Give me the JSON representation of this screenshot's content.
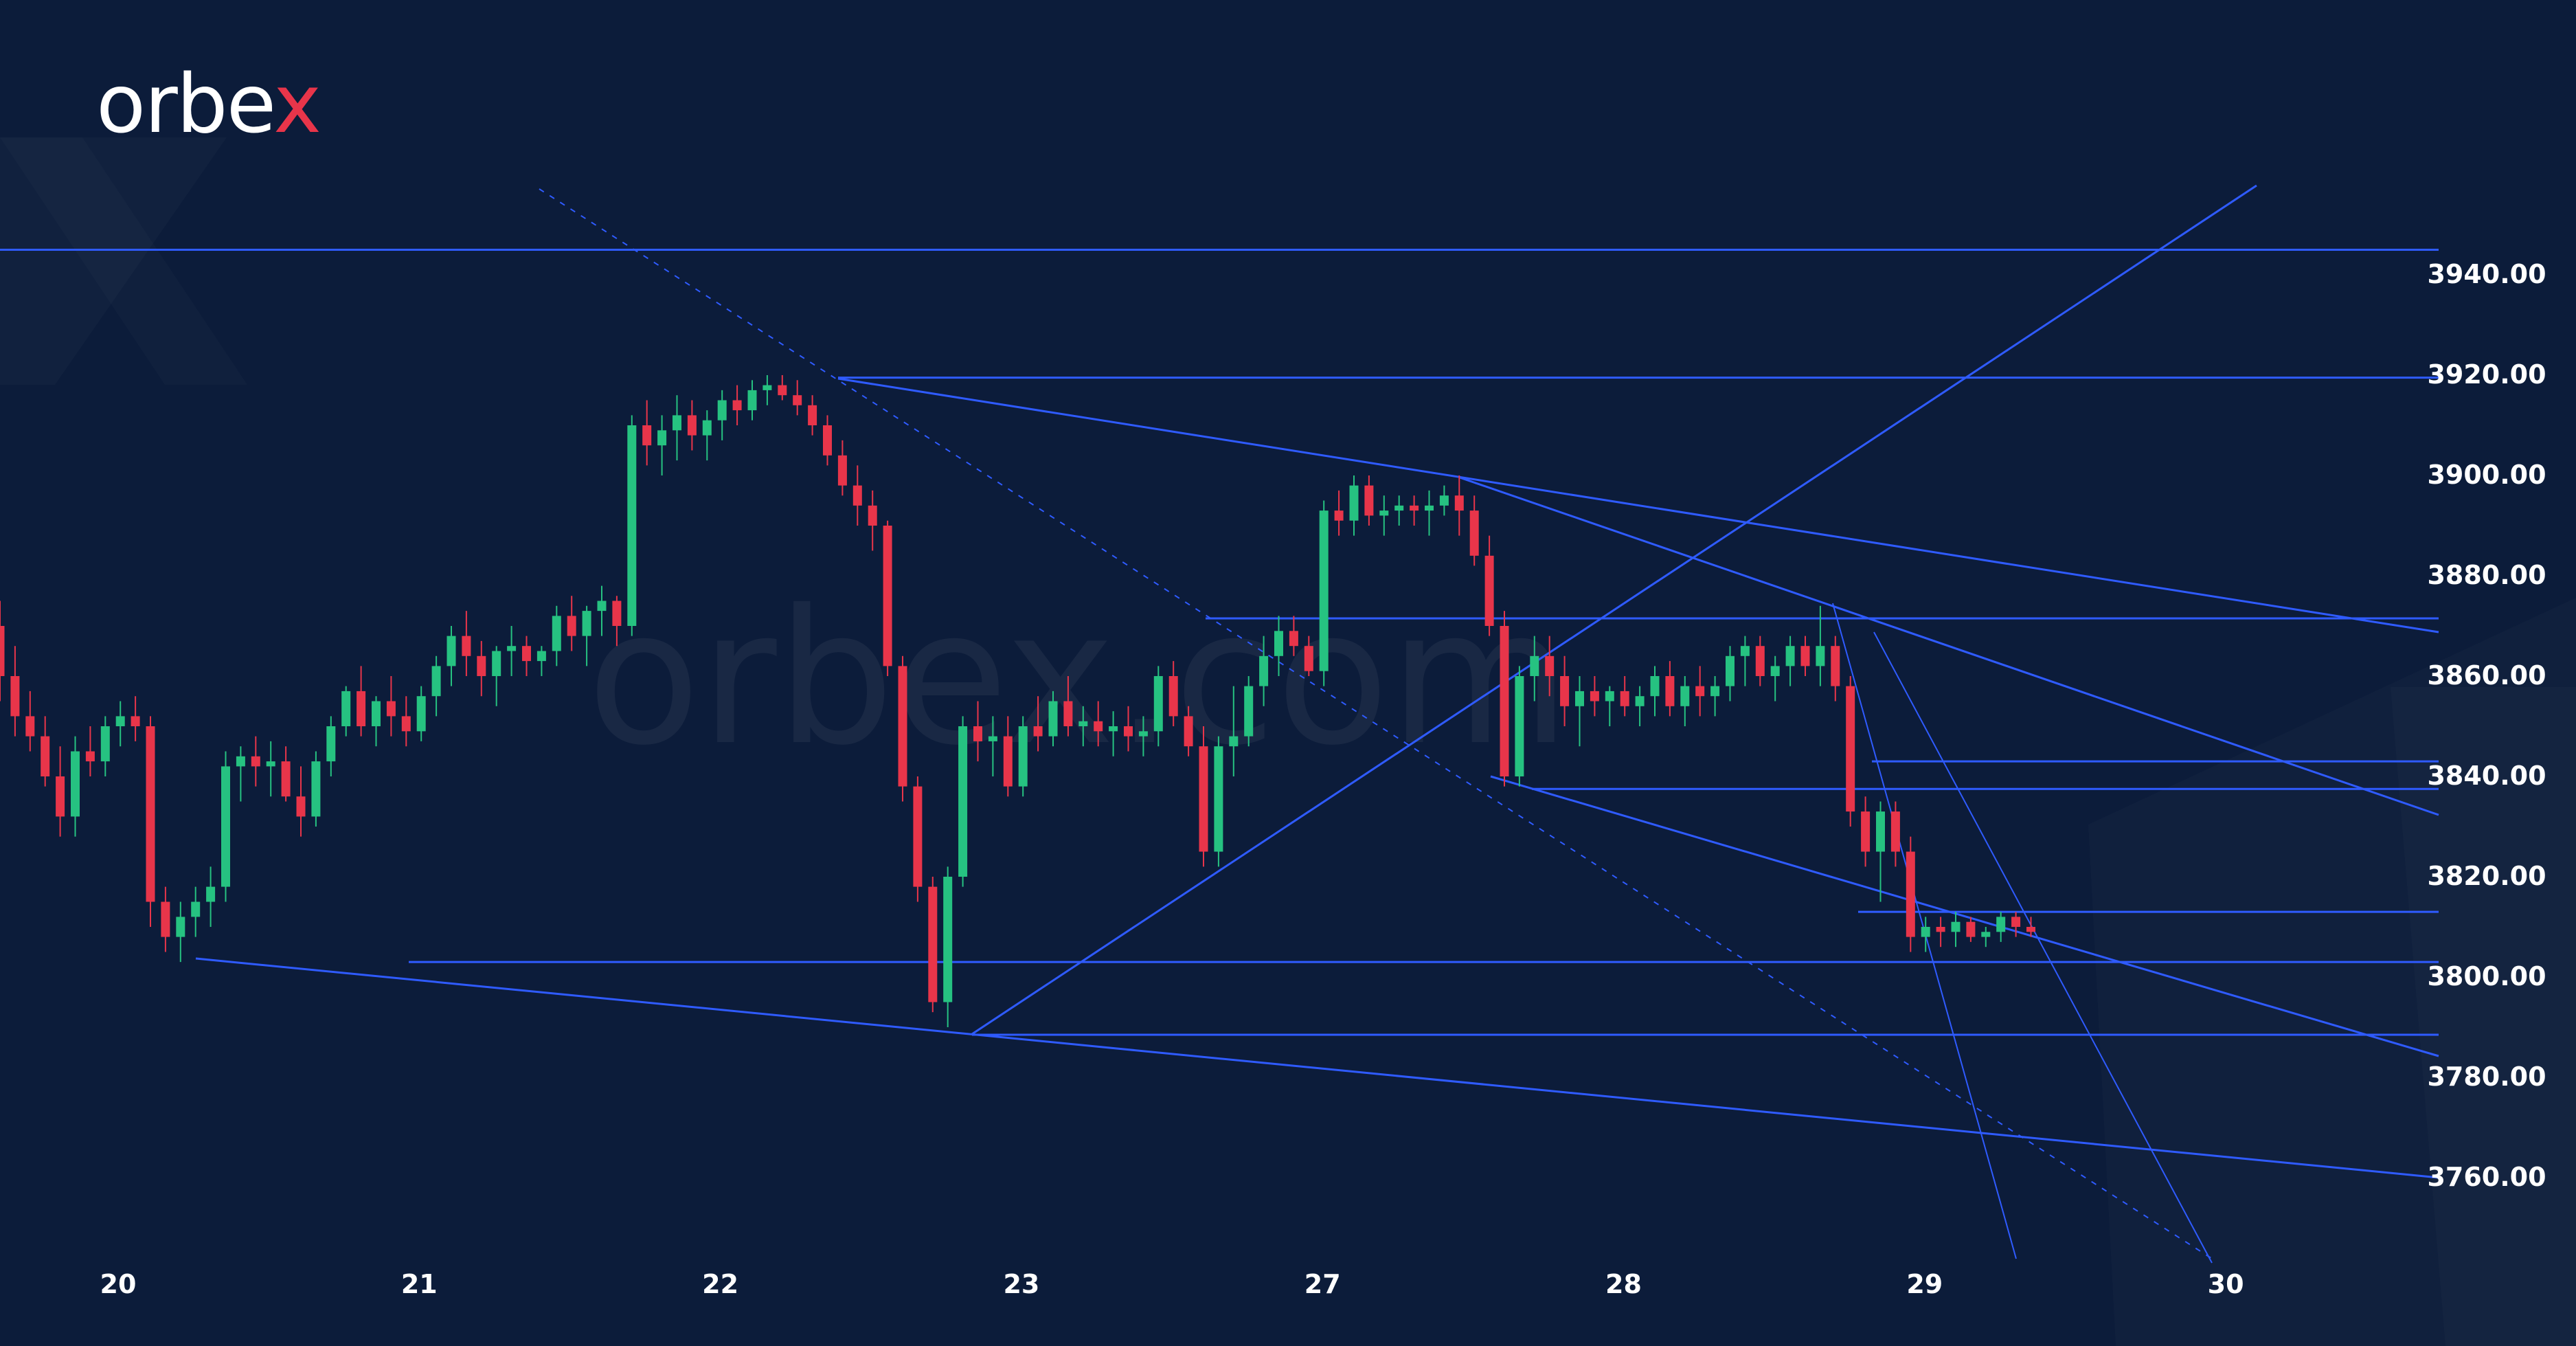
{
  "brand": {
    "logo_main": "orbe",
    "logo_x": "x",
    "watermark": "orbex.com"
  },
  "colors": {
    "background": "#0c1c3a",
    "up": "#26c281",
    "down": "#e8354a",
    "line": "#2f5bff",
    "text": "#ffffff"
  },
  "chart_data": {
    "type": "candlestick",
    "xlabels": [
      "20",
      "21",
      "22",
      "23",
      "27",
      "28",
      "29",
      "30"
    ],
    "yticks": [
      "3940.00",
      "3920.00",
      "3900.00",
      "3880.00",
      "3860.00",
      "3840.00",
      "3820.00",
      "3800.00",
      "3780.00",
      "3760.00"
    ],
    "ylim": [
      3745,
      3955
    ],
    "horizontal_levels": [
      3945,
      3919.5,
      3871.5,
      3843,
      3837.5,
      3813,
      3803,
      3788.5
    ],
    "candles": [
      [
        3870,
        3875,
        3855,
        3860
      ],
      [
        3860,
        3866,
        3848,
        3852
      ],
      [
        3852,
        3857,
        3845,
        3848
      ],
      [
        3848,
        3852,
        3838,
        3840
      ],
      [
        3840,
        3846,
        3828,
        3832
      ],
      [
        3832,
        3848,
        3828,
        3845
      ],
      [
        3845,
        3850,
        3840,
        3843
      ],
      [
        3843,
        3852,
        3840,
        3850
      ],
      [
        3850,
        3855,
        3846,
        3852
      ],
      [
        3852,
        3856,
        3847,
        3850
      ],
      [
        3850,
        3852,
        3810,
        3815
      ],
      [
        3815,
        3818,
        3805,
        3808
      ],
      [
        3808,
        3815,
        3803,
        3812
      ],
      [
        3812,
        3818,
        3808,
        3815
      ],
      [
        3815,
        3822,
        3810,
        3818
      ],
      [
        3818,
        3845,
        3815,
        3842
      ],
      [
        3842,
        3846,
        3835,
        3844
      ],
      [
        3844,
        3848,
        3838,
        3842
      ],
      [
        3842,
        3847,
        3836,
        3843
      ],
      [
        3843,
        3846,
        3835,
        3836
      ],
      [
        3836,
        3842,
        3828,
        3832
      ],
      [
        3832,
        3845,
        3830,
        3843
      ],
      [
        3843,
        3852,
        3840,
        3850
      ],
      [
        3850,
        3858,
        3848,
        3857
      ],
      [
        3857,
        3862,
        3848,
        3850
      ],
      [
        3850,
        3856,
        3846,
        3855
      ],
      [
        3855,
        3860,
        3848,
        3852
      ],
      [
        3852,
        3856,
        3846,
        3849
      ],
      [
        3849,
        3858,
        3847,
        3856
      ],
      [
        3856,
        3864,
        3852,
        3862
      ],
      [
        3862,
        3870,
        3858,
        3868
      ],
      [
        3868,
        3873,
        3860,
        3864
      ],
      [
        3864,
        3867,
        3856,
        3860
      ],
      [
        3860,
        3866,
        3854,
        3865
      ],
      [
        3865,
        3870,
        3860,
        3866
      ],
      [
        3866,
        3868,
        3860,
        3863
      ],
      [
        3863,
        3866,
        3860,
        3865
      ],
      [
        3865,
        3874,
        3862,
        3872
      ],
      [
        3872,
        3876,
        3865,
        3868
      ],
      [
        3868,
        3874,
        3862,
        3873
      ],
      [
        3873,
        3878,
        3868,
        3875
      ],
      [
        3875,
        3876,
        3866,
        3870
      ],
      [
        3870,
        3912,
        3868,
        3910
      ],
      [
        3910,
        3915,
        3902,
        3906
      ],
      [
        3906,
        3912,
        3900,
        3909
      ],
      [
        3909,
        3916,
        3903,
        3912
      ],
      [
        3912,
        3915,
        3905,
        3908
      ],
      [
        3908,
        3913,
        3903,
        3911
      ],
      [
        3911,
        3917,
        3907,
        3915
      ],
      [
        3915,
        3918,
        3910,
        3913
      ],
      [
        3913,
        3919,
        3911,
        3917
      ],
      [
        3917,
        3920,
        3914,
        3918
      ],
      [
        3918,
        3920,
        3915,
        3916
      ],
      [
        3916,
        3919,
        3912,
        3914
      ],
      [
        3914,
        3916,
        3908,
        3910
      ],
      [
        3910,
        3912,
        3902,
        3904
      ],
      [
        3904,
        3907,
        3896,
        3898
      ],
      [
        3898,
        3902,
        3890,
        3894
      ],
      [
        3894,
        3897,
        3885,
        3890
      ],
      [
        3890,
        3891,
        3860,
        3862
      ],
      [
        3862,
        3864,
        3835,
        3838
      ],
      [
        3838,
        3840,
        3815,
        3818
      ],
      [
        3818,
        3820,
        3793,
        3795
      ],
      [
        3795,
        3822,
        3790,
        3820
      ],
      [
        3820,
        3852,
        3818,
        3850
      ],
      [
        3850,
        3855,
        3843,
        3847
      ],
      [
        3847,
        3852,
        3840,
        3848
      ],
      [
        3848,
        3852,
        3836,
        3838
      ],
      [
        3838,
        3852,
        3836,
        3850
      ],
      [
        3850,
        3856,
        3845,
        3848
      ],
      [
        3848,
        3857,
        3846,
        3855
      ],
      [
        3855,
        3860,
        3848,
        3850
      ],
      [
        3850,
        3854,
        3846,
        3851
      ],
      [
        3851,
        3855,
        3846,
        3849
      ],
      [
        3849,
        3853,
        3844,
        3850
      ],
      [
        3850,
        3854,
        3845,
        3848
      ],
      [
        3848,
        3852,
        3844,
        3849
      ],
      [
        3849,
        3862,
        3846,
        3860
      ],
      [
        3860,
        3863,
        3850,
        3852
      ],
      [
        3852,
        3854,
        3844,
        3846
      ],
      [
        3846,
        3850,
        3822,
        3825
      ],
      [
        3825,
        3848,
        3822,
        3846
      ],
      [
        3846,
        3858,
        3840,
        3848
      ],
      [
        3848,
        3860,
        3846,
        3858
      ],
      [
        3858,
        3868,
        3854,
        3864
      ],
      [
        3864,
        3872,
        3860,
        3869
      ],
      [
        3869,
        3872,
        3864,
        3866
      ],
      [
        3866,
        3868,
        3860,
        3861
      ],
      [
        3861,
        3895,
        3858,
        3893
      ],
      [
        3893,
        3897,
        3888,
        3891
      ],
      [
        3891,
        3900,
        3888,
        3898
      ],
      [
        3898,
        3900,
        3890,
        3892
      ],
      [
        3892,
        3896,
        3888,
        3893
      ],
      [
        3893,
        3896,
        3890,
        3894
      ],
      [
        3894,
        3896,
        3890,
        3893
      ],
      [
        3893,
        3897,
        3888,
        3894
      ],
      [
        3894,
        3898,
        3892,
        3896
      ],
      [
        3896,
        3900,
        3888,
        3893
      ],
      [
        3893,
        3896,
        3882,
        3884
      ],
      [
        3884,
        3888,
        3868,
        3870
      ],
      [
        3870,
        3873,
        3838,
        3840
      ],
      [
        3840,
        3862,
        3838,
        3860
      ],
      [
        3860,
        3868,
        3855,
        3864
      ],
      [
        3864,
        3868,
        3856,
        3860
      ],
      [
        3860,
        3864,
        3850,
        3854
      ],
      [
        3854,
        3860,
        3846,
        3857
      ],
      [
        3857,
        3860,
        3852,
        3855
      ],
      [
        3855,
        3858,
        3850,
        3857
      ],
      [
        3857,
        3860,
        3852,
        3854
      ],
      [
        3854,
        3858,
        3850,
        3856
      ],
      [
        3856,
        3862,
        3852,
        3860
      ],
      [
        3860,
        3863,
        3852,
        3854
      ],
      [
        3854,
        3860,
        3850,
        3858
      ],
      [
        3858,
        3862,
        3852,
        3856
      ],
      [
        3856,
        3860,
        3852,
        3858
      ],
      [
        3858,
        3866,
        3855,
        3864
      ],
      [
        3864,
        3868,
        3858,
        3866
      ],
      [
        3866,
        3868,
        3858,
        3860
      ],
      [
        3860,
        3864,
        3855,
        3862
      ],
      [
        3862,
        3868,
        3858,
        3866
      ],
      [
        3866,
        3868,
        3860,
        3862
      ],
      [
        3862,
        3874,
        3858,
        3866
      ],
      [
        3866,
        3868,
        3855,
        3858
      ],
      [
        3858,
        3860,
        3830,
        3833
      ],
      [
        3833,
        3836,
        3822,
        3825
      ],
      [
        3825,
        3835,
        3815,
        3833
      ],
      [
        3833,
        3835,
        3822,
        3825
      ],
      [
        3825,
        3828,
        3805,
        3808
      ],
      [
        3808,
        3812,
        3805,
        3810
      ],
      [
        3810,
        3812,
        3806,
        3809
      ],
      [
        3809,
        3813,
        3806,
        3811
      ],
      [
        3811,
        3812,
        3807,
        3808
      ],
      [
        3808,
        3810,
        3806,
        3809
      ],
      [
        3809,
        3813,
        3807,
        3812
      ],
      [
        3812,
        3813,
        3808,
        3810
      ],
      [
        3810,
        3812,
        3808,
        3809
      ]
    ]
  }
}
